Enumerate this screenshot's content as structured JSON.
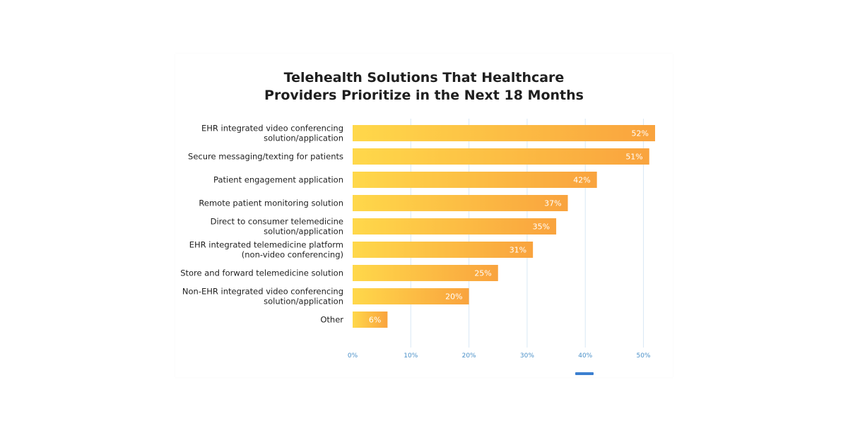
{
  "chart_data": {
    "type": "bar",
    "orientation": "horizontal",
    "title": "Telehealth Solutions That Healthcare Providers Prioritize in the Next 18 Months",
    "title_lines": [
      "Telehealth Solutions That Healthcare",
      "Providers Prioritize in the Next 18 Months"
    ],
    "categories": [
      [
        "EHR integrated video conferencing",
        "solution/application"
      ],
      [
        "Secure messaging/texting for patients"
      ],
      [
        "Patient engagement application"
      ],
      [
        "Remote patient monitoring solution"
      ],
      [
        "Direct to consumer telemedicine",
        "solution/application"
      ],
      [
        "EHR integrated telemedicine platform",
        "(non-video conferencing)"
      ],
      [
        "Store and forward telemedicine solution"
      ],
      [
        "Non-EHR integrated video conferencing",
        "solution/application"
      ],
      [
        "Other"
      ]
    ],
    "values": [
      52,
      51,
      42,
      37,
      35,
      31,
      25,
      20,
      6
    ],
    "value_labels": [
      "52%",
      "51%",
      "42%",
      "37%",
      "35%",
      "31%",
      "25%",
      "20%",
      "6%"
    ],
    "xticks": [
      0,
      10,
      20,
      30,
      40,
      50
    ],
    "xtick_labels": [
      "0%",
      "10%",
      "20%",
      "30%",
      "40%",
      "50%"
    ],
    "xlim": [
      0,
      52
    ],
    "xlabel": "",
    "ylabel": "",
    "grid": "vertical",
    "colors": {
      "bar_start": "#ffd84a",
      "bar_end": "#f9a33e",
      "grid": "#d9e8f5",
      "tick": "#4a90c8"
    }
  }
}
